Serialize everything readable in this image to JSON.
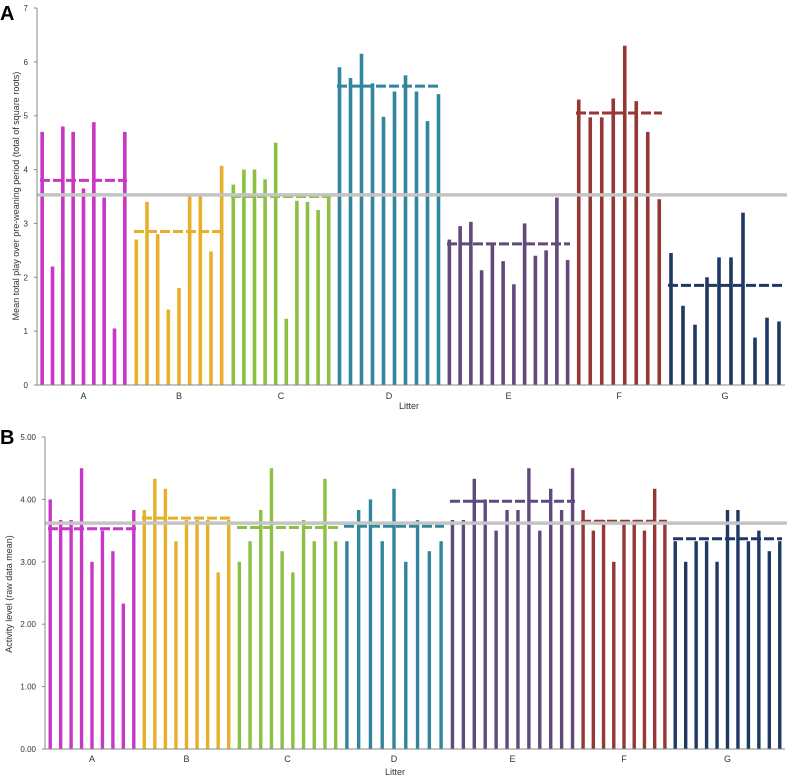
{
  "chart_data": [
    {
      "type": "bar",
      "panel_label": "A",
      "title": "",
      "xlabel": "Litter",
      "ylabel": "Mean total play over pre-weaning period (total of square roots)",
      "ylim": [
        0,
        7
      ],
      "y_ticks": [
        "0",
        "1",
        "2",
        "3",
        "4",
        "5",
        "6",
        "7"
      ],
      "grand_mean": 3.53,
      "litters": [
        {
          "name": "A",
          "color": "#c837c8",
          "mean": 3.8,
          "values": [
            4.7,
            2.2,
            4.8,
            4.7,
            3.65,
            4.88,
            3.48,
            1.05,
            4.7
          ]
        },
        {
          "name": "B",
          "color": "#e6b02a",
          "mean": 2.85,
          "values": [
            2.7,
            3.4,
            2.8,
            1.4,
            1.8,
            3.55,
            3.55,
            2.48,
            4.07
          ]
        },
        {
          "name": "C",
          "color": "#8cc043",
          "mean": 3.5,
          "values": [
            3.72,
            4.0,
            4.0,
            3.82,
            4.5,
            1.23,
            3.42,
            3.4,
            3.25,
            3.5
          ]
        },
        {
          "name": "D",
          "color": "#31859c",
          "mean": 5.55,
          "values": [
            5.9,
            5.7,
            6.15,
            5.6,
            4.98,
            5.45,
            5.75,
            5.45,
            4.9,
            5.4
          ]
        },
        {
          "name": "E",
          "color": "#604a7b",
          "mean": 2.62,
          "values": [
            2.7,
            2.95,
            3.03,
            2.13,
            2.6,
            2.3,
            1.87,
            3.0,
            2.4,
            2.5,
            3.48,
            2.32
          ]
        },
        {
          "name": "F",
          "color": "#953735",
          "mean": 5.05,
          "values": [
            5.3,
            4.97,
            4.97,
            5.32,
            6.3,
            5.27,
            4.7,
            3.45
          ]
        },
        {
          "name": "G",
          "color": "#1f3864",
          "mean": 1.85,
          "values": [
            2.45,
            1.47,
            1.12,
            2.0,
            2.37,
            2.37,
            3.2,
            0.88,
            1.25,
            1.18
          ]
        }
      ]
    },
    {
      "type": "bar",
      "panel_label": "B",
      "title": "",
      "xlabel": "Litter",
      "ylabel": "Activity level (raw data mean)",
      "ylim": [
        0,
        5
      ],
      "y_ticks": [
        "0.00",
        "1.00",
        "2.00",
        "3.00",
        "4.00",
        "5.00"
      ],
      "grand_mean": 3.62,
      "litters": [
        {
          "name": "A",
          "color": "#c837c8",
          "mean": 3.53,
          "values": [
            4.0,
            3.67,
            3.67,
            4.5,
            3.0,
            3.5,
            3.17,
            2.33,
            3.83
          ]
        },
        {
          "name": "B",
          "color": "#e6b02a",
          "mean": 3.7,
          "values": [
            3.83,
            4.33,
            4.17,
            3.33,
            3.67,
            3.67,
            3.67,
            2.83,
            3.67
          ]
        },
        {
          "name": "C",
          "color": "#8cc043",
          "mean": 3.55,
          "values": [
            3.0,
            3.33,
            3.83,
            4.5,
            3.17,
            2.83,
            3.67,
            3.33,
            4.33,
            3.33
          ]
        },
        {
          "name": "D",
          "color": "#31859c",
          "mean": 3.57,
          "values": [
            3.33,
            3.83,
            4.0,
            3.33,
            4.17,
            3.0,
            3.67,
            3.17,
            3.33
          ]
        },
        {
          "name": "E",
          "color": "#604a7b",
          "mean": 3.97,
          "values": [
            3.67,
            3.67,
            4.33,
            4.0,
            3.5,
            3.83,
            3.83,
            4.5,
            3.5,
            4.17,
            3.83,
            4.5
          ]
        },
        {
          "name": "F",
          "color": "#953735",
          "mean": 3.65,
          "values": [
            3.83,
            3.5,
            3.67,
            3.0,
            3.67,
            3.67,
            3.5,
            4.17,
            3.67
          ]
        },
        {
          "name": "G",
          "color": "#1f3864",
          "mean": 3.37,
          "values": [
            3.33,
            3.0,
            3.33,
            3.33,
            3.0,
            3.83,
            3.83,
            3.33,
            3.5,
            3.17,
            3.33
          ]
        }
      ]
    }
  ]
}
